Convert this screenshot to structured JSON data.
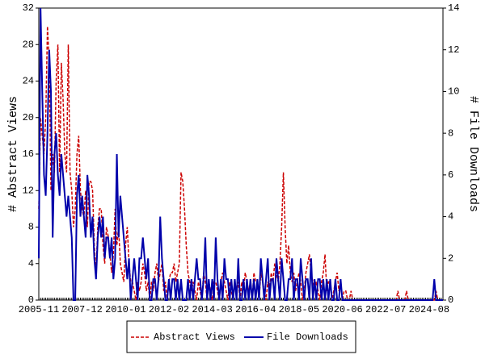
{
  "chart_data": {
    "type": "line",
    "y_label": "# Abstract Views",
    "y2_label": "# File Downloads",
    "categories": [
      "2005-11",
      null,
      null,
      null,
      null,
      null,
      null,
      null,
      null,
      null,
      null,
      null,
      null,
      null,
      null,
      null,
      null,
      null,
      null,
      null,
      null,
      null,
      null,
      null,
      null,
      "2007-12",
      null,
      null,
      null,
      null,
      null,
      null,
      null,
      null,
      null,
      null,
      null,
      null,
      null,
      null,
      null,
      null,
      null,
      null,
      null,
      null,
      null,
      null,
      null,
      null,
      "2010-01",
      null,
      null,
      null,
      null,
      null,
      null,
      null,
      null,
      null,
      null,
      null,
      null,
      null,
      null,
      null,
      null,
      null,
      null,
      null,
      null,
      null,
      null,
      null,
      null,
      "2012-02",
      null,
      null,
      null,
      null,
      null,
      null,
      null,
      null,
      null,
      null,
      null,
      null,
      null,
      null,
      null,
      null,
      null,
      null,
      null,
      null,
      null,
      null,
      null,
      null,
      "2014-03",
      null,
      null,
      null,
      null,
      null,
      null,
      null,
      null,
      null,
      null,
      null,
      null,
      null,
      null,
      null,
      null,
      null,
      null,
      null,
      null,
      null,
      null,
      null,
      null,
      "2016-04",
      null,
      null,
      null,
      null,
      null,
      null,
      null,
      null,
      null,
      null,
      null,
      null,
      null,
      null,
      null,
      null,
      null,
      null,
      null,
      null,
      null,
      null,
      null,
      null,
      "2018-05",
      null,
      null,
      null,
      null,
      null,
      null,
      null,
      null,
      null,
      null,
      null,
      null,
      null,
      null,
      null,
      null,
      null,
      null,
      null,
      null,
      null,
      null,
      null,
      null,
      "2020-06",
      null,
      null,
      null,
      null,
      null,
      null,
      null,
      null,
      null,
      null,
      null,
      null,
      null,
      null,
      null,
      null,
      null,
      null,
      null,
      null,
      null,
      null,
      null,
      null,
      "2022-07",
      null,
      null,
      null,
      null,
      null,
      null,
      null,
      null,
      null,
      null,
      null,
      null,
      null,
      null,
      null,
      null,
      null,
      null,
      null,
      null,
      null,
      null,
      null,
      null,
      "2024-08",
      null,
      null,
      null,
      null,
      null,
      null,
      null,
      null
    ],
    "series": [
      {
        "name": "Abstract Views",
        "color": "#cc0000",
        "style": "dashed",
        "axis": "y",
        "values": [
          10,
          20,
          18,
          16,
          20,
          30,
          26,
          12,
          16,
          14,
          24,
          28,
          14,
          26,
          22,
          16,
          14,
          28,
          14,
          12,
          8,
          10,
          16,
          18,
          12,
          10,
          9,
          12,
          8,
          13,
          13,
          12,
          6,
          3,
          8,
          10,
          10,
          6,
          4,
          8,
          7,
          5,
          3,
          5,
          10,
          6,
          8,
          4,
          3,
          2,
          6,
          8,
          4,
          2,
          2,
          1,
          0,
          2,
          1,
          2,
          4,
          3,
          1,
          2,
          0,
          2,
          1,
          3,
          4,
          2,
          3,
          4,
          1,
          2,
          0,
          2,
          3,
          3,
          4,
          2,
          3,
          4,
          14,
          13,
          10,
          6,
          3,
          2,
          1,
          2,
          1,
          0,
          2,
          1,
          0,
          3,
          2,
          0,
          2,
          1,
          0,
          2,
          2,
          1,
          0,
          2,
          3,
          2,
          1,
          0,
          2,
          1,
          0,
          2,
          1,
          2,
          0,
          2,
          1,
          3,
          2,
          1,
          2,
          0,
          3,
          2,
          2,
          0,
          3,
          2,
          1,
          0,
          2,
          1,
          3,
          2,
          4,
          3,
          2,
          4,
          8,
          14,
          8,
          4,
          6,
          3,
          2,
          3,
          1,
          2,
          3,
          2,
          0,
          1,
          3,
          4,
          5,
          3,
          2,
          1,
          2,
          1,
          0,
          2,
          3,
          5,
          1,
          2,
          2,
          0,
          1,
          2,
          3,
          1,
          2,
          0,
          1,
          1,
          0,
          0,
          1,
          0,
          0,
          0,
          0,
          0,
          0,
          0,
          0,
          0,
          0,
          0,
          0,
          0,
          0,
          0,
          0,
          0,
          0,
          0,
          0,
          0,
          0,
          0,
          0,
          0,
          0,
          1,
          0,
          0,
          0,
          0,
          1,
          0,
          0,
          0,
          0,
          0,
          0,
          0,
          0,
          0,
          0,
          0,
          0,
          0,
          0,
          0,
          0,
          1,
          0,
          0,
          0,
          0
        ]
      },
      {
        "name": "File Downloads",
        "color": "#0000aa",
        "style": "solid",
        "axis": "y2",
        "values": [
          2,
          14,
          10,
          6,
          5,
          8,
          12,
          10,
          3,
          7,
          8,
          6,
          5,
          7,
          6,
          5,
          4,
          5,
          4,
          3,
          0,
          0,
          5,
          6,
          4,
          5,
          4,
          3,
          6,
          5,
          3,
          4,
          2,
          1,
          3,
          4,
          3,
          4,
          2,
          3,
          3,
          2,
          3,
          1,
          2,
          7,
          3,
          5,
          4,
          3,
          2,
          1,
          2,
          0,
          1,
          2,
          1,
          0,
          2,
          2,
          3,
          2,
          1,
          2,
          0,
          0,
          1,
          1,
          0,
          1,
          4,
          2,
          1,
          0,
          0,
          1,
          0,
          1,
          1,
          0,
          1,
          0,
          1,
          0,
          0,
          0,
          1,
          0,
          1,
          0,
          1,
          2,
          1,
          1,
          0,
          1,
          3,
          0,
          1,
          0,
          1,
          0,
          3,
          1,
          0,
          1,
          0,
          2,
          1,
          1,
          0,
          1,
          0,
          1,
          0,
          2,
          0,
          0,
          1,
          0,
          1,
          0,
          1,
          0,
          1,
          0,
          1,
          0,
          2,
          1,
          0,
          1,
          2,
          0,
          1,
          1,
          0,
          2,
          1,
          0,
          2,
          1,
          0,
          0,
          1,
          1,
          2,
          0,
          1,
          1,
          0,
          2,
          1,
          0,
          1,
          1,
          0,
          2,
          0,
          1,
          0,
          1,
          1,
          0,
          1,
          0,
          1,
          0,
          1,
          0,
          0,
          1,
          0,
          0,
          1,
          0,
          0,
          0,
          0,
          0,
          0,
          0,
          0,
          0,
          0,
          0,
          0,
          0,
          0,
          0,
          0,
          0,
          0,
          0,
          0,
          0,
          0,
          0,
          0,
          0,
          0,
          0,
          0,
          0,
          0,
          0,
          0,
          0,
          0,
          0,
          0,
          0,
          0,
          0,
          0,
          0,
          0,
          0,
          0,
          0,
          0,
          0,
          0,
          0,
          0,
          0,
          0,
          0,
          1,
          0,
          0,
          0,
          0,
          0
        ]
      }
    ],
    "ylim": [
      0,
      32
    ],
    "yticks": [
      0,
      4,
      8,
      12,
      16,
      20,
      24,
      28,
      32
    ],
    "y2lim": [
      0,
      14
    ],
    "y2ticks": [
      0,
      2,
      4,
      6,
      8,
      10,
      12,
      14
    ],
    "legend": "bottom"
  }
}
